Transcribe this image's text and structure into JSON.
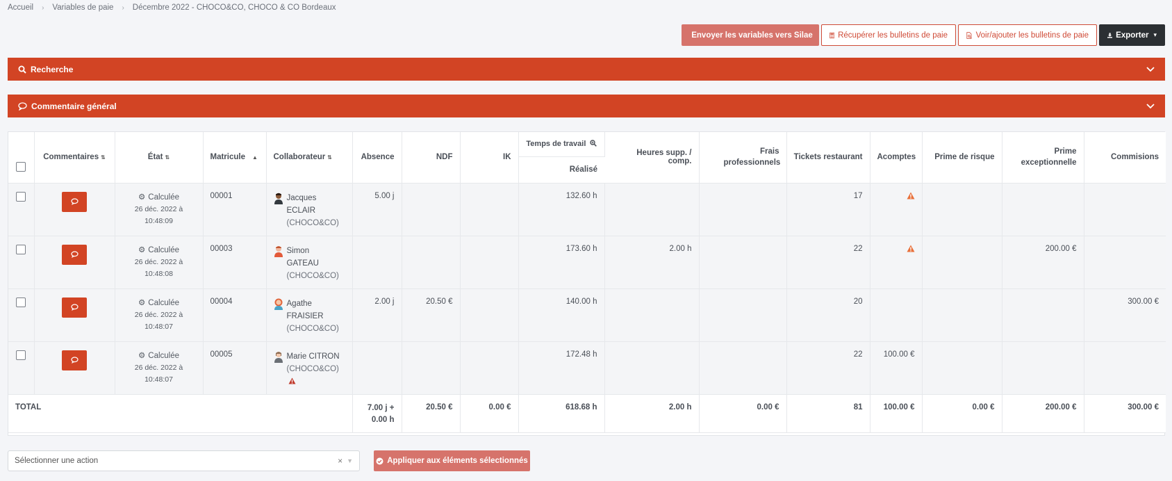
{
  "breadcrumb": [
    "Accueil",
    "Variables de paie",
    "Décembre 2022 - CHOCO&CO, CHOCO & CO Bordeaux"
  ],
  "toolbar": {
    "send": "Envoyer les variables vers Silae",
    "recup": "Récupérer les bulletins de paie",
    "voir": "Voir/ajouter les bulletins de paie",
    "export": "Exporter"
  },
  "panels": {
    "search": "Recherche",
    "comment": "Commentaire général"
  },
  "columns": {
    "commentaires": "Commentaires",
    "etat": "État",
    "matricule": "Matricule",
    "collaborateur": "Collaborateur",
    "absence": "Absence",
    "ndf": "NDF",
    "ik": "IK",
    "temps": "Temps de travail",
    "realise": "Réalisé",
    "heures": "Heures supp. / comp.",
    "frais": "Frais professionnels",
    "tickets": "Tickets restaurant",
    "acomptes": "Acomptes",
    "risque": "Prime de risque",
    "exceptionnelle": "Prime exceptionnelle",
    "commisions": "Commisions"
  },
  "rows": [
    {
      "etat": "Calculée",
      "date": "26 déc. 2022 à",
      "time": "10:48:09",
      "matricule": "00001",
      "first": "Jacques",
      "last": "ECLAIR",
      "company": "(CHOCO&CO)",
      "absence": "5.00 j",
      "ndf": "",
      "ik": "",
      "realise": "132.60 h",
      "heures": "",
      "frais": "",
      "tickets": "17",
      "acomptes": "",
      "risque": "",
      "exceptionnelle": "",
      "commisions": ""
    },
    {
      "etat": "Calculée",
      "date": "26 déc. 2022 à",
      "time": "10:48:08",
      "matricule": "00003",
      "first": "Simon",
      "last": "GATEAU",
      "company": "(CHOCO&CO)",
      "absence": "",
      "ndf": "",
      "ik": "",
      "realise": "173.60 h",
      "heures": "2.00 h",
      "frais": "",
      "tickets": "22",
      "acomptes": "",
      "risque": "",
      "exceptionnelle": "200.00 €",
      "commisions": ""
    },
    {
      "etat": "Calculée",
      "date": "26 déc. 2022 à",
      "time": "10:48:07",
      "matricule": "00004",
      "first": "Agathe",
      "last": "FRAISIER",
      "company": "(CHOCO&CO)",
      "absence": "2.00 j",
      "ndf": "20.50 €",
      "ik": "",
      "realise": "140.00 h",
      "heures": "",
      "frais": "",
      "tickets": "20",
      "acomptes": "",
      "risque": "",
      "exceptionnelle": "",
      "commisions": "300.00 €"
    },
    {
      "etat": "Calculée",
      "date": "26 déc. 2022 à",
      "time": "10:48:07",
      "matricule": "00005",
      "first": "Marie CITRON",
      "last": "",
      "company": "(CHOCO&CO)",
      "absence": "",
      "ndf": "",
      "ik": "",
      "realise": "172.48 h",
      "heures": "",
      "frais": "",
      "tickets": "22",
      "acomptes": "100.00 €",
      "risque": "",
      "exceptionnelle": "",
      "commisions": ""
    }
  ],
  "total": {
    "label": "TOTAL",
    "absence1": "7.00 j +",
    "absence2": "0.00 h",
    "ndf": "20.50 €",
    "ik": "0.00 €",
    "realise": "618.68 h",
    "heures": "2.00 h",
    "frais": "0.00 €",
    "tickets": "81",
    "acomptes": "100.00 €",
    "risque": "0.00 €",
    "exceptionnelle": "200.00 €",
    "commisions": "300.00 €"
  },
  "footer": {
    "select_placeholder": "Sélectionner une action",
    "apply": "Appliquer aux éléments sélectionnés"
  },
  "colors": {
    "primary": "#d24424",
    "light_primary": "#d6736b",
    "dark": "#2b2f33",
    "warning": "#e8703a",
    "alert": "#c0392b"
  }
}
